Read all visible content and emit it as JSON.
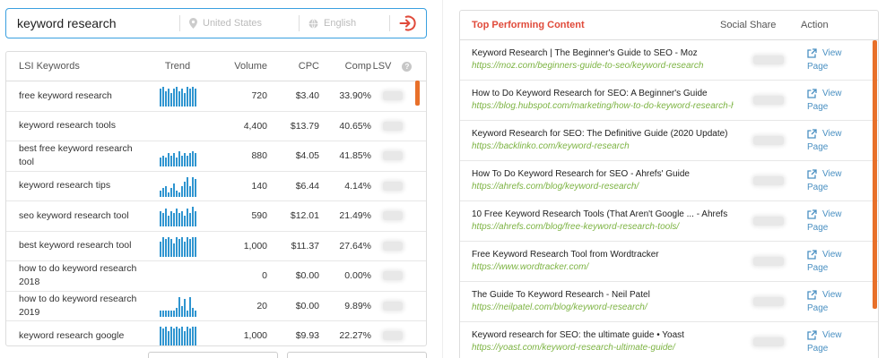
{
  "search": {
    "query": "keyword research",
    "country_placeholder": "United States",
    "language_placeholder": "English"
  },
  "keywords_table": {
    "headers": {
      "keyword": "LSI Keywords",
      "trend": "Trend",
      "volume": "Volume",
      "cpc": "CPC",
      "comp": "Comp",
      "lsv": "LSV"
    },
    "rows": [
      {
        "keyword": "free keyword research",
        "volume": "720",
        "cpc": "$3.40",
        "comp": "33.90%",
        "trend": [
          8,
          9,
          7,
          8,
          6,
          8,
          9,
          7,
          8,
          6,
          9,
          8,
          9,
          8
        ]
      },
      {
        "keyword": "keyword research tools",
        "volume": "4,400",
        "cpc": "$13.79",
        "comp": "40.65%",
        "trend": []
      },
      {
        "keyword": "best free keyword research tool",
        "volume": "880",
        "cpc": "$4.05",
        "comp": "41.85%",
        "trend": [
          4,
          5,
          4,
          6,
          5,
          6,
          4,
          7,
          5,
          6,
          5,
          6,
          7,
          6
        ]
      },
      {
        "keyword": "keyword research tips",
        "volume": "140",
        "cpc": "$6.44",
        "comp": "4.14%",
        "trend": [
          3,
          4,
          5,
          2,
          4,
          6,
          3,
          2,
          5,
          7,
          9,
          5,
          9,
          8
        ]
      },
      {
        "keyword": "seo keyword research tool",
        "volume": "590",
        "cpc": "$12.01",
        "comp": "21.49%",
        "trend": [
          7,
          6,
          8,
          5,
          7,
          6,
          8,
          6,
          7,
          5,
          8,
          6,
          9,
          7
        ]
      },
      {
        "keyword": "best keyword research tool",
        "volume": "1,000",
        "cpc": "$11.37",
        "comp": "27.64%",
        "trend": [
          7,
          9,
          8,
          9,
          8,
          6,
          9,
          8,
          9,
          7,
          9,
          8,
          9,
          9
        ]
      },
      {
        "keyword": "how to do keyword research 2018",
        "volume": "0",
        "cpc": "$0.00",
        "comp": "0.00%",
        "trend": []
      },
      {
        "keyword": "how to do keyword research 2019",
        "volume": "20",
        "cpc": "$0.00",
        "comp": "9.89%",
        "trend": [
          3,
          3,
          3,
          3,
          3,
          3,
          4,
          9,
          5,
          8,
          3,
          9,
          4,
          3
        ]
      },
      {
        "keyword": "keyword research google",
        "volume": "1,000",
        "cpc": "$9.93",
        "comp": "22.27%",
        "trend": [
          9,
          8,
          9,
          7,
          9,
          8,
          9,
          8,
          9,
          7,
          9,
          8,
          9,
          9
        ]
      }
    ]
  },
  "top_content": {
    "headers": {
      "title": "Top Performing Content",
      "social_share": "Social Share",
      "action": "Action"
    },
    "view_label_1": "View",
    "view_label_2": "Page",
    "rows": [
      {
        "title": "Keyword Research | The Beginner's Guide to SEO - Moz",
        "url": "https://moz.com/beginners-guide-to-seo/keyword-research"
      },
      {
        "title": "How to Do Keyword Research for SEO: A Beginner's Guide",
        "url": "https://blog.hubspot.com/marketing/how-to-do-keyword-research-ht"
      },
      {
        "title": "Keyword Research for SEO: The Definitive Guide (2020 Update)",
        "url": "https://backlinko.com/keyword-research"
      },
      {
        "title": "How To Do Keyword Research for SEO - Ahrefs' Guide",
        "url": "https://ahrefs.com/blog/keyword-research/"
      },
      {
        "title": "10 Free Keyword Research Tools (That Aren't Google ... - Ahrefs",
        "url": "https://ahrefs.com/blog/free-keyword-research-tools/"
      },
      {
        "title": "Free Keyword Research Tool from Wordtracker",
        "url": "https://www.wordtracker.com/"
      },
      {
        "title": "The Guide To Keyword Research - Neil Patel",
        "url": "https://neilpatel.com/blog/keyword-research/"
      },
      {
        "title": "Keyword research for SEO: the ultimate guide • Yoast",
        "url": "https://yoast.com/keyword-research-ultimate-guide/"
      }
    ]
  },
  "colors": {
    "accent": "#e04a3a",
    "trend_bar": "#2f95d0",
    "url_green": "#7cb342",
    "link_blue": "#4a90c2",
    "scroll_thumb": "#e8702a",
    "focus_border": "#3aa0e0"
  },
  "icons": {
    "location": "map-pin-icon",
    "language": "globe-icon",
    "go": "circle-arrow-icon",
    "help": "question-circle-icon",
    "external": "external-link-icon"
  }
}
